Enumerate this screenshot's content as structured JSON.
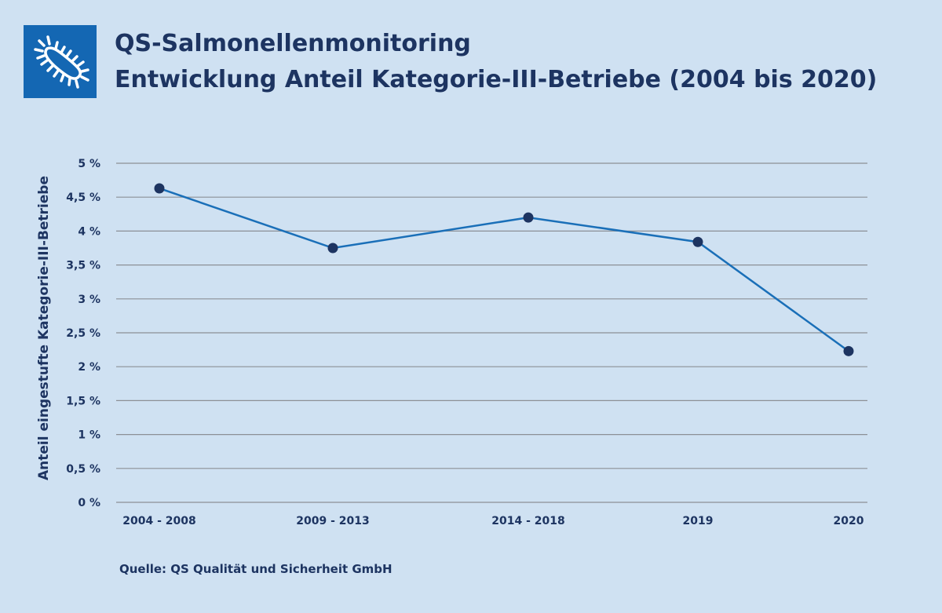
{
  "title_line1": "QS-Salmonellenmonitoring",
  "title_line2": "Entwicklung Anteil Kategorie-III-Betriebe (2004 bis 2020)",
  "source": "Quelle: QS Qualität und Sicherheit GmbH",
  "logo_icon": "bacterium-icon",
  "colors": {
    "background": "#cfe1f2",
    "line": "#1a6fb8",
    "marker": "#1d3461",
    "logo": "#1467b3"
  },
  "chart_data": {
    "type": "line",
    "title": "Entwicklung Anteil Kategorie-III-Betriebe (2004 bis 2020)",
    "xlabel": "",
    "ylabel": "Anteil eingestufte Kategorie-III-Betriebe",
    "categories": [
      "2004 - 2008",
      "2009 - 2013",
      "2014 - 2018",
      "2019",
      "2020"
    ],
    "values": [
      4.63,
      3.75,
      4.2,
      3.84,
      2.23
    ],
    "ylim": [
      0,
      5
    ],
    "yticks": [
      "0 %",
      "0,5 %",
      "1 %",
      "1,5 %",
      "2 %",
      "2,5 %",
      "3 %",
      "3,5 %",
      "4 %",
      "4,5 %",
      "5 %"
    ],
    "grid": true
  }
}
